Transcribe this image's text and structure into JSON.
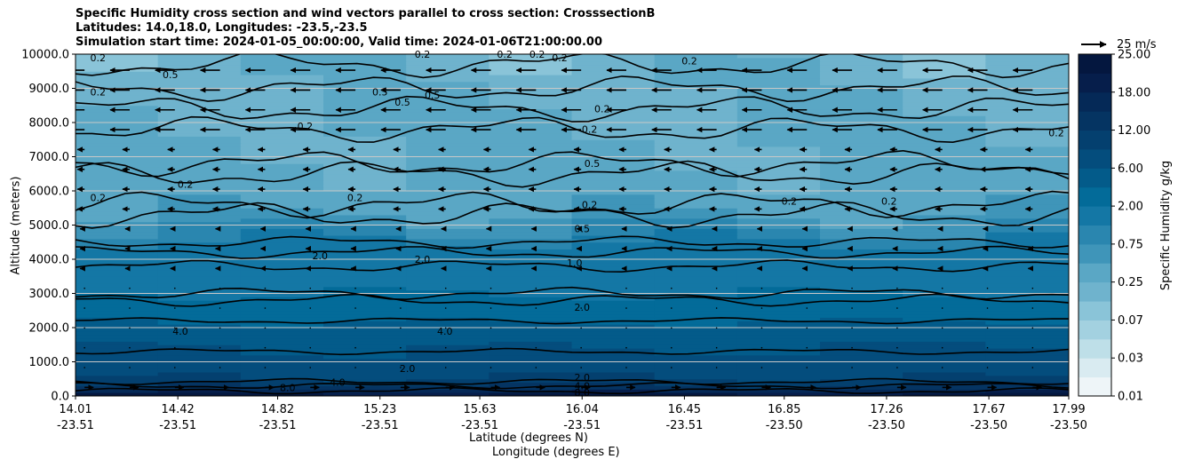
{
  "chart_data": {
    "type": "contourf",
    "title_lines": [
      "Specific Humidity cross section and wind vectors parallel to cross section: CrosssectionB",
      "Latitudes: 14.0,18.0, Longitudes: -23.5,-23.5",
      "Simulation start time: 2024-01-05_00:00:00, Valid time: 2024-01-06T21:00:00.00"
    ],
    "ylabel": "Altitude (meters)",
    "xlabel_lat": "Latitude (degrees N)",
    "xlabel_lon": "Longitude (degrees E)",
    "ylim": [
      0,
      10000
    ],
    "yticks": [
      "0.0",
      "1000.0",
      "2000.0",
      "3000.0",
      "4000.0",
      "5000.0",
      "6000.0",
      "7000.0",
      "8000.0",
      "9000.0",
      "10000.0"
    ],
    "xticks": [
      {
        "lat": "14.01",
        "lon": "-23.51"
      },
      {
        "lat": "14.42",
        "lon": "-23.51"
      },
      {
        "lat": "14.82",
        "lon": "-23.51"
      },
      {
        "lat": "15.23",
        "lon": "-23.51"
      },
      {
        "lat": "15.63",
        "lon": "-23.51"
      },
      {
        "lat": "16.04",
        "lon": "-23.51"
      },
      {
        "lat": "16.45",
        "lon": "-23.51"
      },
      {
        "lat": "16.85",
        "lon": "-23.50"
      },
      {
        "lat": "17.26",
        "lon": "-23.50"
      },
      {
        "lat": "17.67",
        "lon": "-23.50"
      },
      {
        "lat": "17.99",
        "lon": "-23.50"
      }
    ],
    "colorbar": {
      "label": "Specific Humidity g/kg",
      "tick_labels": [
        "0.01",
        "0.03",
        "0.07",
        "0.25",
        "0.75",
        "2.00",
        "6.00",
        "12.00",
        "18.00",
        "25.00"
      ]
    },
    "quiver_key": "25 m/s",
    "contour_levels": [
      "0.2",
      "0.5",
      "1.0",
      "2.0",
      "4.0",
      "8.0"
    ],
    "humidity_profile": [
      {
        "altitude": 0,
        "q": 25
      },
      {
        "altitude": 200,
        "q": 14
      },
      {
        "altitude": 500,
        "q": 9
      },
      {
        "altitude": 1000,
        "q": 7
      },
      {
        "altitude": 2000,
        "q": 4.5
      },
      {
        "altitude": 2800,
        "q": 2.2
      },
      {
        "altitude": 3500,
        "q": 1.5
      },
      {
        "altitude": 4500,
        "q": 1.0
      },
      {
        "altitude": 5500,
        "q": 0.4
      },
      {
        "altitude": 7000,
        "q": 0.3
      },
      {
        "altitude": 10000,
        "q": 0.2
      }
    ],
    "contour_labels": [
      {
        "text": "0.2",
        "lat": 14.1,
        "alt": 9900
      },
      {
        "text": "0.2",
        "lat": 14.1,
        "alt": 8900
      },
      {
        "text": "0.5",
        "lat": 14.39,
        "alt": 9400
      },
      {
        "text": "0.2",
        "lat": 14.1,
        "alt": 5800
      },
      {
        "text": "0.2",
        "lat": 14.45,
        "alt": 6200
      },
      {
        "text": "0.2",
        "lat": 14.93,
        "alt": 7900
      },
      {
        "text": "0.5",
        "lat": 15.23,
        "alt": 8900
      },
      {
        "text": "0.5",
        "lat": 15.32,
        "alt": 8600
      },
      {
        "text": "0.5",
        "lat": 15.44,
        "alt": 8800
      },
      {
        "text": "0.2",
        "lat": 15.4,
        "alt": 10000
      },
      {
        "text": "0.2",
        "lat": 15.73,
        "alt": 10000
      },
      {
        "text": "0.2",
        "lat": 15.86,
        "alt": 10000
      },
      {
        "text": "0.2",
        "lat": 15.95,
        "alt": 9900
      },
      {
        "text": "0.2",
        "lat": 15.13,
        "alt": 5800
      },
      {
        "text": "2.0",
        "lat": 14.99,
        "alt": 4100
      },
      {
        "text": "2.0",
        "lat": 15.4,
        "alt": 4000
      },
      {
        "text": "0.2",
        "lat": 16.07,
        "alt": 7800
      },
      {
        "text": "0.2",
        "lat": 16.12,
        "alt": 8400
      },
      {
        "text": "0.5",
        "lat": 16.08,
        "alt": 6800
      },
      {
        "text": "0.2",
        "lat": 16.07,
        "alt": 5600
      },
      {
        "text": "0.5",
        "lat": 16.04,
        "alt": 4900
      },
      {
        "text": "1.0",
        "lat": 16.01,
        "alt": 3900
      },
      {
        "text": "2.0",
        "lat": 16.04,
        "alt": 2600
      },
      {
        "text": "0.2",
        "lat": 16.47,
        "alt": 9800
      },
      {
        "text": "0.2",
        "lat": 16.87,
        "alt": 5700
      },
      {
        "text": "0.2",
        "lat": 17.27,
        "alt": 5700
      },
      {
        "text": "0.2",
        "lat": 17.94,
        "alt": 7700
      },
      {
        "text": "4.0",
        "lat": 14.43,
        "alt": 1900
      },
      {
        "text": "4.0",
        "lat": 15.49,
        "alt": 1900
      },
      {
        "text": "2.0",
        "lat": 15.34,
        "alt": 800
      },
      {
        "text": "4.0",
        "lat": 15.06,
        "alt": 400
      },
      {
        "text": "8.0",
        "lat": 14.86,
        "alt": 250
      },
      {
        "text": "2.0",
        "lat": 16.04,
        "alt": 550
      },
      {
        "text": "4.0",
        "lat": 16.04,
        "alt": 300
      },
      {
        "text": "8.0",
        "lat": 16.04,
        "alt": 100
      }
    ]
  },
  "colors": {
    "grid": "#c8c8c8",
    "contour": "#000000",
    "level_colors": [
      "#eef5f8",
      "#d9ebf1",
      "#bedfe8",
      "#a3d1e0",
      "#8ac4d8",
      "#6fb3cd",
      "#5aa7c5",
      "#3f95b9",
      "#2a86af",
      "#1477a5",
      "#036b99",
      "#035b8a",
      "#044d7d",
      "#04406f",
      "#053462",
      "#052957",
      "#061e4b",
      "#04173f"
    ]
  }
}
